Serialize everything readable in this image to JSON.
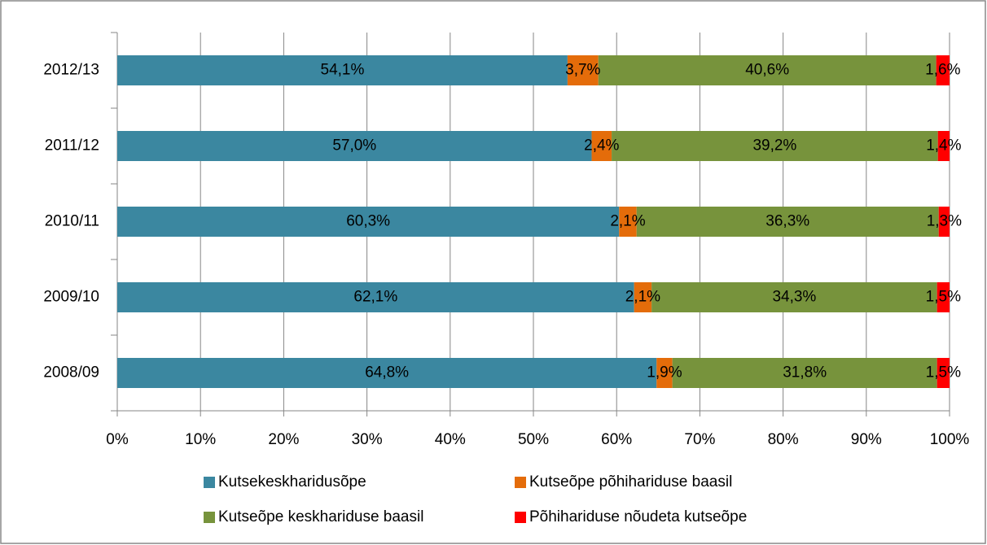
{
  "chart_data": {
    "type": "stacked-bar-horizontal",
    "categories": [
      "2012/13",
      "2011/12",
      "2010/11",
      "2009/10",
      "2008/09"
    ],
    "series": [
      {
        "name": "Kutsekeskharidusõpe",
        "color": "#3b87a0",
        "values": [
          54.1,
          57.0,
          60.3,
          62.1,
          64.8
        ],
        "value_labels": [
          "54,1%",
          "57,0%",
          "60,3%",
          "62,1%",
          "64,8%"
        ]
      },
      {
        "name": "Kutseõpe põhihariduse baasil",
        "color": "#e46c0a",
        "values": [
          3.7,
          2.4,
          2.1,
          2.1,
          1.9
        ],
        "value_labels": [
          "3,7%",
          "2,4%",
          "2,1%",
          "2,1%",
          "1,9%"
        ]
      },
      {
        "name": "Kutseõpe keskhariduse baasil",
        "color": "#77933c",
        "values": [
          40.6,
          39.2,
          36.3,
          34.3,
          31.8
        ],
        "value_labels": [
          "40,6%",
          "39,2%",
          "36,3%",
          "34,3%",
          "31,8%"
        ]
      },
      {
        "name": "Põhihariduse nõudeta kutseõpe",
        "color": "#ff0000",
        "values": [
          1.6,
          1.4,
          1.3,
          1.5,
          1.5
        ],
        "value_labels": [
          "1,6%",
          "1,4%",
          "1,3%",
          "1,5%",
          "1,5%"
        ]
      }
    ],
    "xlim": [
      0,
      100
    ],
    "xticks": [
      {
        "value": 0,
        "label": "0%"
      },
      {
        "value": 10,
        "label": "10%"
      },
      {
        "value": 20,
        "label": "20%"
      },
      {
        "value": 30,
        "label": "30%"
      },
      {
        "value": 40,
        "label": "40%"
      },
      {
        "value": 50,
        "label": "50%"
      },
      {
        "value": 60,
        "label": "60%"
      },
      {
        "value": 70,
        "label": "70%"
      },
      {
        "value": 80,
        "label": "80%"
      },
      {
        "value": 90,
        "label": "90%"
      },
      {
        "value": 100,
        "label": "100%"
      }
    ],
    "grid": true,
    "legend": "bottom"
  }
}
